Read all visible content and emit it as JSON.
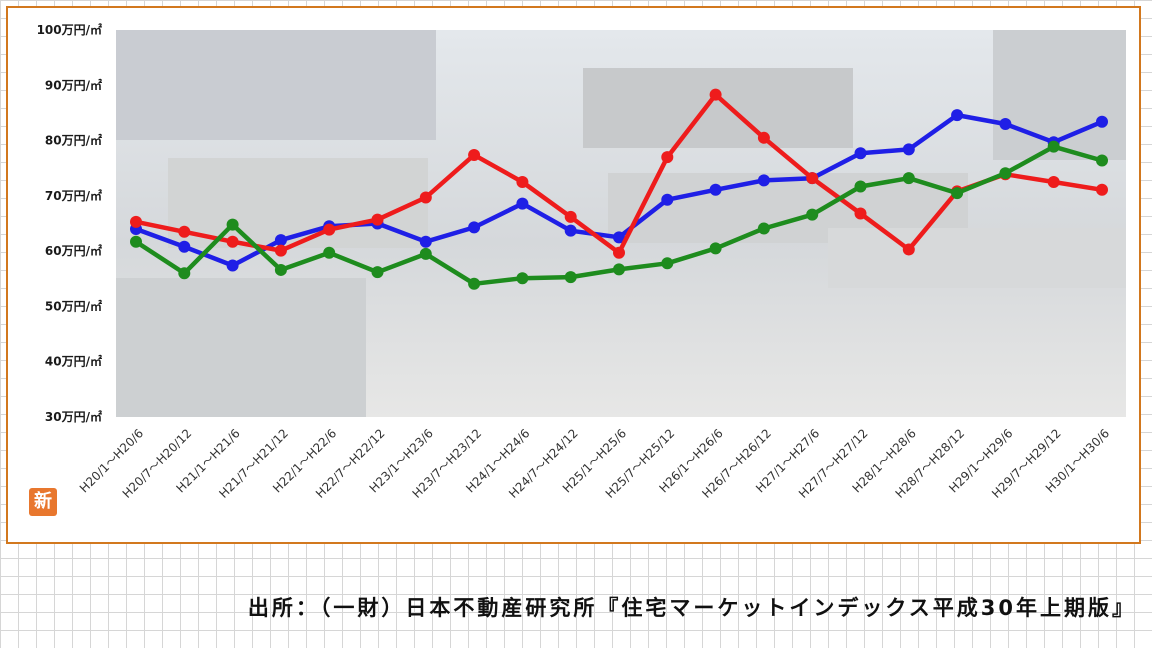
{
  "chart_data": {
    "type": "line",
    "ylim": [
      30,
      100
    ],
    "y_ticks": [
      "100万円/㎡",
      "90万円/㎡",
      "80万円/㎡",
      "70万円/㎡",
      "60万円/㎡",
      "50万円/㎡",
      "40万円/㎡",
      "30万円/㎡"
    ],
    "categories": [
      "H20/1～H20/6",
      "H20/7～H20/12",
      "H21/1～H21/6",
      "H21/7～H21/12",
      "H22/1～H22/6",
      "H22/7～H22/12",
      "H23/1～H23/6",
      "H23/7～H23/12",
      "H24/1～H24/6",
      "H24/7～H24/12",
      "H25/1～H25/6",
      "H25/7～H25/12",
      "H26/1～H26/6",
      "H26/7～H26/12",
      "H27/1～H27/6",
      "H27/7～H27/12",
      "H28/1～H28/6",
      "H28/7～H28/12",
      "H29/1～H29/6",
      "H29/7～H29/12",
      "H30/1～H30/6"
    ],
    "series": [
      {
        "color": "#1f1fe6",
        "values": [
          64,
          60.8,
          57.4,
          62,
          64.5,
          65,
          61.7,
          64.3,
          68.6,
          63.7,
          62.5,
          69.3,
          71.1,
          72.8,
          73.2,
          77.7,
          78.4,
          84.6,
          83,
          79.7,
          83.4
        ]
      },
      {
        "color": "#ee1c1c",
        "values": [
          65.3,
          63.5,
          61.7,
          60.1,
          63.9,
          65.7,
          69.7,
          77.4,
          72.5,
          66.2,
          59.7,
          77,
          88.3,
          80.5,
          73.2,
          66.8,
          60.3,
          70.8,
          73.9,
          72.5,
          71.1
        ]
      },
      {
        "color": "#1e8c1e",
        "values": [
          61.7,
          56,
          64.8,
          56.6,
          59.7,
          56.2,
          59.5,
          54.1,
          55.1,
          55.3,
          56.7,
          57.8,
          60.5,
          64.1,
          66.6,
          71.7,
          73.2,
          70.5,
          74.1,
          78.9,
          76.4
        ]
      }
    ],
    "grid": false,
    "legend": "none"
  },
  "badge": {
    "text": "新"
  },
  "source": {
    "text": "出所：（一財）日本不動産研究所『住宅マーケットインデックス平成30年上期版』"
  }
}
